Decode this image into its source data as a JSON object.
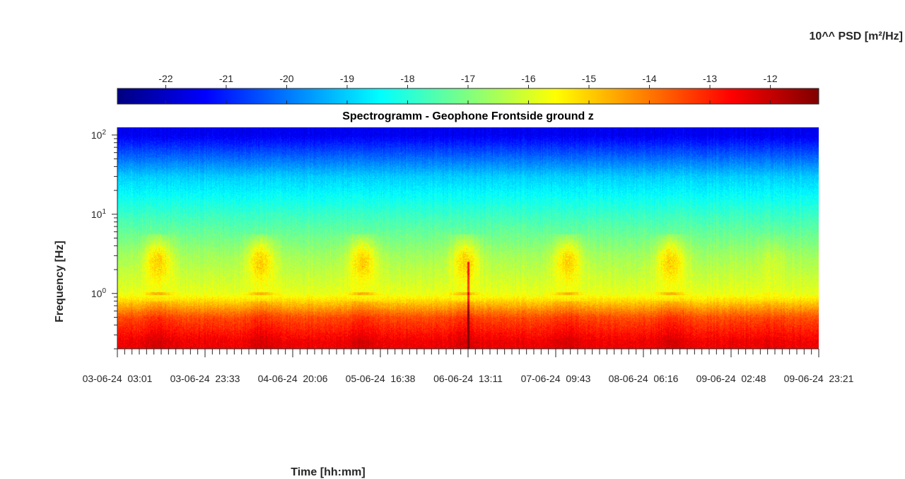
{
  "chart_data": {
    "type": "heatmap",
    "title": "Spectrogramm - Geophone Frontside ground z",
    "xlabel": "Time [hh:mm]",
    "ylabel": "Frequency [Hz]",
    "y_scale": "log",
    "y_range_hz": [
      0.2,
      125
    ],
    "y_ticks": [
      {
        "base": "10",
        "exp": "0"
      },
      {
        "base": "10",
        "exp": "1"
      },
      {
        "base": "10",
        "exp": "2"
      }
    ],
    "x_range": [
      "03-06-24 03:01",
      "09-06-24 23:21"
    ],
    "x_tick_labels": [
      "03-06-24  03:01",
      "03-06-24  23:33",
      "04-06-24  20:06",
      "05-06-24  16:38",
      "06-06-24  13:11",
      "07-06-24  09:43",
      "08-06-24  06:16",
      "09-06-24  02:48",
      "09-06-24  23:21"
    ],
    "colorbar": {
      "label": "10^^ PSD [m²/Hz]",
      "colormap": "jet",
      "range": [
        -22.8,
        -11.2
      ],
      "ticks": [
        "-22",
        "-21",
        "-20",
        "-19",
        "-18",
        "-17",
        "-16",
        "-15",
        "-14",
        "-13",
        "-12"
      ]
    },
    "features": {
      "daily_activity_band_hz": [
        1.5,
        5.0
      ],
      "line_at_hz": 1.0,
      "transient_time": "06-06-24 13:11",
      "background_levels": [
        {
          "freq_hz": 100,
          "log10_psd": -21.5
        },
        {
          "freq_hz": 30,
          "log10_psd": -19.0
        },
        {
          "freq_hz": 10,
          "log10_psd": -17.8
        },
        {
          "freq_hz": 3,
          "log10_psd": -16.6
        },
        {
          "freq_hz": 1,
          "log10_psd": -15.8
        },
        {
          "freq_hz": 0.5,
          "log10_psd": -13.5
        },
        {
          "freq_hz": 0.25,
          "log10_psd": -12.5
        }
      ]
    }
  }
}
